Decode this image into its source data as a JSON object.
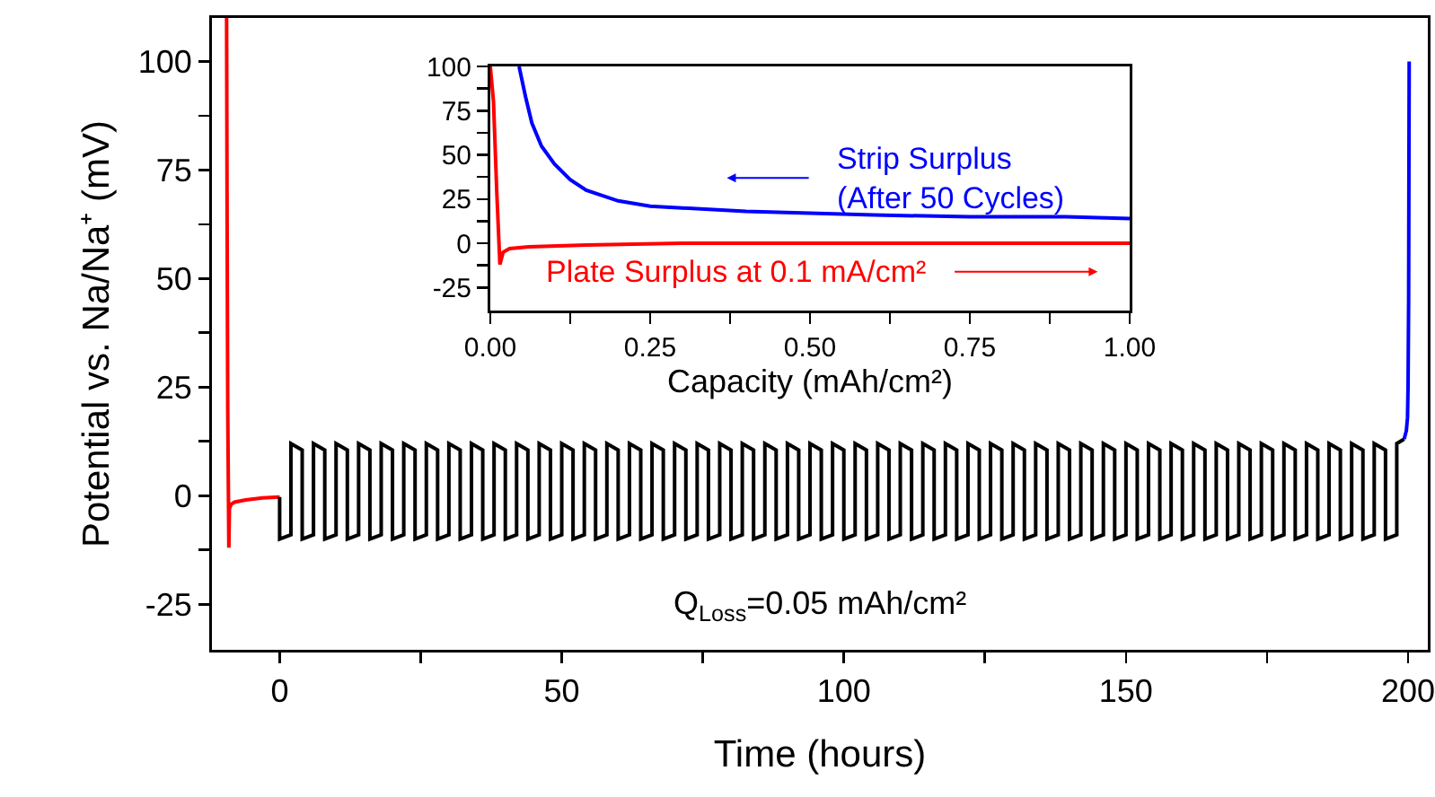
{
  "chart_data": [
    {
      "type": "line",
      "xlabel": "Time (hours)",
      "ylabel": "Potential vs. Na/Na⁺ (mV)",
      "xlim": [
        -12,
        203.5
      ],
      "ylim": [
        -35.5,
        110
      ],
      "xticks": [
        0,
        {
          "value": 25,
          "label": null
        },
        50,
        {
          "value": 75,
          "label": null
        },
        100,
        {
          "value": 125,
          "label": null
        },
        150,
        {
          "value": 175,
          "label": null
        },
        200
      ],
      "yticks": [
        -25,
        {
          "value": -12.5,
          "label": null
        },
        0,
        {
          "value": 12.5,
          "label": null
        },
        25,
        {
          "value": 37.5,
          "label": null
        },
        50,
        {
          "value": 62.5,
          "label": null
        },
        75,
        {
          "value": 87.5,
          "label": null
        },
        100
      ],
      "grid": false,
      "line_style": "solid",
      "marker": "none",
      "series": [
        {
          "color": "#ff0000",
          "x": [
            -9.4,
            -9.3,
            -9.2,
            -9.0,
            -8.9,
            -8.6,
            -8,
            -6,
            -3,
            0
          ],
          "values": [
            110,
            60,
            20,
            -12,
            -3,
            -2,
            -1.5,
            -1,
            -0.5,
            -0.3
          ]
        },
        {
          "color": "#000000",
          "x": [
            0,
            0,
            2,
            2,
            4,
            4,
            4,
            6,
            6,
            8,
            8,
            8,
            10,
            10,
            12,
            12,
            12,
            14,
            14,
            16,
            16,
            16,
            18,
            18,
            20,
            20,
            20,
            22,
            22,
            24,
            24,
            24,
            26,
            26,
            28,
            28,
            28,
            30,
            30,
            32,
            32,
            32,
            34,
            34,
            36,
            36,
            36,
            38,
            38,
            40,
            40,
            40,
            42,
            42,
            44,
            44,
            44,
            46,
            46,
            48,
            48,
            48,
            50,
            50,
            52,
            52,
            52,
            54,
            54,
            56,
            56,
            56,
            58,
            58,
            60,
            60,
            60,
            62,
            62,
            64,
            64,
            64,
            66,
            66,
            68,
            68,
            68,
            70,
            70,
            72,
            72,
            72,
            74,
            74,
            76,
            76,
            76,
            78,
            78,
            80,
            80,
            80,
            82,
            82,
            84,
            84,
            84,
            86,
            86,
            88,
            88,
            88,
            90,
            90,
            92,
            92,
            92,
            94,
            94,
            96,
            96,
            96,
            98,
            98,
            100,
            100,
            100,
            102,
            102,
            104,
            104,
            104,
            106,
            106,
            108,
            108,
            108,
            110,
            110,
            112,
            112,
            112,
            114,
            114,
            116,
            116,
            116,
            118,
            118,
            120,
            120,
            120,
            122,
            122,
            124,
            124,
            124,
            126,
            126,
            128,
            128,
            128,
            130,
            130,
            132,
            132,
            132,
            134,
            134,
            136,
            136,
            136,
            138,
            138,
            140,
            140,
            140,
            142,
            142,
            144,
            144,
            144,
            146,
            146,
            148,
            148,
            148,
            150,
            150,
            152,
            152,
            152,
            154,
            154,
            156,
            156,
            156,
            158,
            158,
            160,
            160,
            160,
            162,
            162,
            164,
            164,
            164,
            166,
            166,
            168,
            168,
            168,
            170,
            170,
            172,
            172,
            172,
            174,
            174,
            176,
            176,
            176,
            178,
            178,
            180,
            180,
            180,
            182,
            182,
            184,
            184,
            184,
            186,
            186,
            188,
            188,
            188,
            190,
            190,
            192,
            192,
            192,
            194,
            194,
            196,
            196,
            196,
            198,
            198,
            199.3
          ],
          "values": [
            -0.3,
            -10,
            -9,
            12,
            10.5,
            -10,
            -10,
            -9,
            12,
            10.5,
            -10,
            -10,
            -9,
            12,
            10.5,
            -10,
            -10,
            -9,
            12,
            10.5,
            -10,
            -10,
            -9,
            12,
            10.5,
            -10,
            -10,
            -9,
            12,
            10.5,
            -10,
            -10,
            -9,
            12,
            10.5,
            -10,
            -10,
            -9,
            12,
            10.5,
            -10,
            -10,
            -9,
            12,
            10.5,
            -10,
            -10,
            -9,
            12,
            10.5,
            -10,
            -10,
            -9,
            12,
            10.5,
            -10,
            -10,
            -9,
            12,
            10.5,
            -10,
            -10,
            -9,
            12,
            10.5,
            -10,
            -10,
            -9,
            12,
            10.5,
            -10,
            -10,
            -9,
            12,
            10.5,
            -10,
            -10,
            -9,
            12,
            10.5,
            -10,
            -10,
            -9,
            12,
            10.5,
            -10,
            -10,
            -9,
            12,
            10.5,
            -10,
            -10,
            -9,
            12,
            10.5,
            -10,
            -10,
            -9,
            12,
            10.5,
            -10,
            -10,
            -9,
            12,
            10.5,
            -10,
            -10,
            -9,
            12,
            10.5,
            -10,
            -10,
            -9,
            12,
            10.5,
            -10,
            -10,
            -9,
            12,
            10.5,
            -10,
            -10,
            -9,
            12,
            10.5,
            -10,
            -10,
            -9,
            12,
            10.5,
            -10,
            -10,
            -9,
            12,
            10.5,
            -10,
            -10,
            -9,
            12,
            10.5,
            -10,
            -10,
            -9,
            12,
            10.5,
            -10,
            -10,
            -9,
            12,
            10.5,
            -10,
            -10,
            -9,
            12,
            10.5,
            -10,
            -10,
            -9,
            12,
            10.5,
            -10,
            -10,
            -9,
            12,
            10.5,
            -10,
            -10,
            -9,
            12,
            10.5,
            -10,
            -10,
            -9,
            12,
            10.5,
            -10,
            -10,
            -9,
            12,
            10.5,
            -10,
            -10,
            -9,
            12,
            10.5,
            -10,
            -10,
            -9,
            12,
            10.5,
            -10,
            -10,
            -9,
            12,
            10.5,
            -10,
            -10,
            -9,
            12,
            10.5,
            -10,
            -10,
            -9,
            12,
            10.5,
            -10,
            -10,
            -9,
            12,
            10.5,
            -10,
            -10,
            -9,
            12,
            10.5,
            -10,
            -10,
            -9,
            12,
            10.5,
            -10,
            -10,
            -9,
            12,
            10.5,
            -10,
            -10,
            -9,
            12,
            10.5,
            -10,
            -10,
            -9,
            12,
            10.5,
            -10,
            -10,
            -9,
            12,
            10.5,
            -10,
            -10,
            -9,
            12,
            10.5,
            -10,
            -10,
            -9,
            12,
            13
          ]
        },
        {
          "color": "#0000ff",
          "x": [
            199.3,
            199.7,
            199.9,
            200.0,
            200.1,
            200.15,
            200.2
          ],
          "values": [
            13,
            15,
            18,
            25,
            45,
            75,
            100
          ]
        }
      ],
      "annotations": [
        "Q$_{Loss}$=0.05 mAh/cm²"
      ]
    },
    {
      "type": "line",
      "xlabel": "Capacity (mAh/cm²)",
      "xlim": [
        0,
        1
      ],
      "ylim": [
        -38,
        100
      ],
      "xticks": [
        {
          "value": 0,
          "label": "0.00"
        },
        {
          "value": 0.125,
          "label": null
        },
        {
          "value": 0.25,
          "label": "0.25"
        },
        {
          "value": 0.375,
          "label": null
        },
        {
          "value": 0.5,
          "label": "0.50"
        },
        {
          "value": 0.625,
          "label": null
        },
        {
          "value": 0.75,
          "label": "0.75"
        },
        {
          "value": 0.875,
          "label": null
        },
        {
          "value": 1,
          "label": "1.00"
        }
      ],
      "yticks": [
        -25,
        {
          "value": -12.5,
          "label": null
        },
        0,
        {
          "value": 12.5,
          "label": null
        },
        25,
        {
          "value": 37.5,
          "label": null
        },
        50,
        {
          "value": 62.5,
          "label": null
        },
        75,
        {
          "value": 87.5,
          "label": null
        },
        100
      ],
      "grid": false,
      "line_style": "solid",
      "marker": "none",
      "series": [
        {
          "name": "Strip Surplus\n(After 50 Cycles)",
          "color": "#0000ff",
          "x": [
            0.045,
            0.055,
            0.065,
            0.08,
            0.1,
            0.125,
            0.15,
            0.2,
            0.25,
            0.3,
            0.4,
            0.5,
            0.6,
            0.75,
            0.9,
            1
          ],
          "values": [
            100,
            83,
            68,
            55,
            45,
            36,
            30,
            24,
            21,
            20,
            18,
            17,
            16,
            15,
            15,
            14
          ]
        },
        {
          "name": "Plate Surplus at 0.1 mA/cm²",
          "color": "#ff0000",
          "x": [
            0,
            0.005,
            0.01,
            0.015,
            0.02,
            0.03,
            0.06,
            0.15,
            0.3,
            0.6,
            1
          ],
          "values": [
            100,
            80,
            30,
            -12,
            -5,
            -3,
            -2,
            -1,
            0,
            0,
            0
          ]
        }
      ]
    }
  ]
}
